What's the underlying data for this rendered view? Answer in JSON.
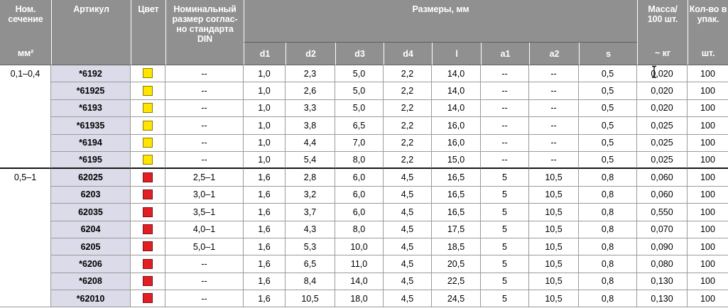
{
  "table": {
    "header": {
      "section": {
        "label": "Ном.\nсечение",
        "unit": "мм²"
      },
      "article": {
        "label": "Артикул"
      },
      "color": {
        "label": "Цвет"
      },
      "din": {
        "label": "Номинальный\nразмер соглас-\nно стандарта\nDIN"
      },
      "sizes": {
        "label": "Размеры, мм",
        "sub": [
          "d1",
          "d2",
          "d3",
          "d4",
          "l",
          "a1",
          "a2",
          "s"
        ]
      },
      "mass": {
        "label": "Масса/\n100 шт.",
        "unit": "~ кг"
      },
      "qty": {
        "label": "Кол-во в\nупак.",
        "unit": "шт."
      }
    },
    "groups": [
      {
        "section": "0,1–0,4",
        "rows": [
          {
            "article": "*6192",
            "color": "yellow",
            "din": "--",
            "d1": "1,0",
            "d2": "2,3",
            "d3": "5,0",
            "d4": "2,2",
            "l": "14,0",
            "a1": "--",
            "a2": "--",
            "s": "0,5",
            "mass": "0,020",
            "qty": "100"
          },
          {
            "article": "*61925",
            "color": "yellow",
            "din": "--",
            "d1": "1,0",
            "d2": "2,6",
            "d3": "5,0",
            "d4": "2,2",
            "l": "14,0",
            "a1": "--",
            "a2": "--",
            "s": "0,5",
            "mass": "0,020",
            "qty": "100"
          },
          {
            "article": "*6193",
            "color": "yellow",
            "din": "--",
            "d1": "1,0",
            "d2": "3,3",
            "d3": "5,0",
            "d4": "2,2",
            "l": "14,0",
            "a1": "--",
            "a2": "--",
            "s": "0,5",
            "mass": "0,020",
            "qty": "100"
          },
          {
            "article": "*61935",
            "color": "yellow",
            "din": "--",
            "d1": "1,0",
            "d2": "3,8",
            "d3": "6,5",
            "d4": "2,2",
            "l": "16,0",
            "a1": "--",
            "a2": "--",
            "s": "0,5",
            "mass": "0,025",
            "qty": "100"
          },
          {
            "article": "*6194",
            "color": "yellow",
            "din": "--",
            "d1": "1,0",
            "d2": "4,4",
            "d3": "7,0",
            "d4": "2,2",
            "l": "16,0",
            "a1": "--",
            "a2": "--",
            "s": "0,5",
            "mass": "0,025",
            "qty": "100"
          },
          {
            "article": "*6195",
            "color": "yellow",
            "din": "--",
            "d1": "1,0",
            "d2": "5,4",
            "d3": "8,0",
            "d4": "2,2",
            "l": "15,0",
            "a1": "--",
            "a2": "--",
            "s": "0,5",
            "mass": "0,025",
            "qty": "100"
          }
        ]
      },
      {
        "section": "0,5–1",
        "rows": [
          {
            "article": "62025",
            "color": "red",
            "din": "2,5–1",
            "d1": "1,6",
            "d2": "2,8",
            "d3": "6,0",
            "d4": "4,5",
            "l": "16,5",
            "a1": "5",
            "a2": "10,5",
            "s": "0,8",
            "mass": "0,060",
            "qty": "100"
          },
          {
            "article": "6203",
            "color": "red",
            "din": "3,0–1",
            "d1": "1,6",
            "d2": "3,2",
            "d3": "6,0",
            "d4": "4,5",
            "l": "16,5",
            "a1": "5",
            "a2": "10,5",
            "s": "0,8",
            "mass": "0,060",
            "qty": "100"
          },
          {
            "article": "62035",
            "color": "red",
            "din": "3,5–1",
            "d1": "1,6",
            "d2": "3,7",
            "d3": "6,0",
            "d4": "4,5",
            "l": "16,5",
            "a1": "5",
            "a2": "10,5",
            "s": "0,8",
            "mass": "0,550",
            "qty": "100"
          },
          {
            "article": "6204",
            "color": "red",
            "din": "4,0–1",
            "d1": "1,6",
            "d2": "4,3",
            "d3": "8,0",
            "d4": "4,5",
            "l": "17,5",
            "a1": "5",
            "a2": "10,5",
            "s": "0,8",
            "mass": "0,070",
            "qty": "100"
          },
          {
            "article": "6205",
            "color": "red",
            "din": "5,0–1",
            "d1": "1,6",
            "d2": "5,3",
            "d3": "10,0",
            "d4": "4,5",
            "l": "18,5",
            "a1": "5",
            "a2": "10,5",
            "s": "0,8",
            "mass": "0,090",
            "qty": "100"
          },
          {
            "article": "*6206",
            "color": "red",
            "din": "--",
            "d1": "1,6",
            "d2": "6,5",
            "d3": "11,0",
            "d4": "4,5",
            "l": "20,5",
            "a1": "5",
            "a2": "10,5",
            "s": "0,8",
            "mass": "0,080",
            "qty": "100"
          },
          {
            "article": "*6208",
            "color": "red",
            "din": "--",
            "d1": "1,6",
            "d2": "8,4",
            "d3": "14,0",
            "d4": "4,5",
            "l": "22,5",
            "a1": "5",
            "a2": "10,5",
            "s": "0,8",
            "mass": "0,130",
            "qty": "100"
          },
          {
            "article": "*62010",
            "color": "red",
            "din": "--",
            "d1": "1,6",
            "d2": "10,5",
            "d3": "18,0",
            "d4": "4,5",
            "l": "24,5",
            "a1": "5",
            "a2": "10,5",
            "s": "0,8",
            "mass": "0,130",
            "qty": "100"
          }
        ]
      }
    ]
  },
  "colors": {
    "header_bg": "#909090",
    "header_text": "#ffffff",
    "article_bg": "#dbdbea",
    "grid_line": "#9b9b9b",
    "group_separator": "#161616",
    "swatches": {
      "yellow": {
        "fill": "#ffe500",
        "border": "#8b7d00"
      },
      "red": {
        "fill": "#e31e24",
        "border": "#7d1013"
      }
    }
  }
}
